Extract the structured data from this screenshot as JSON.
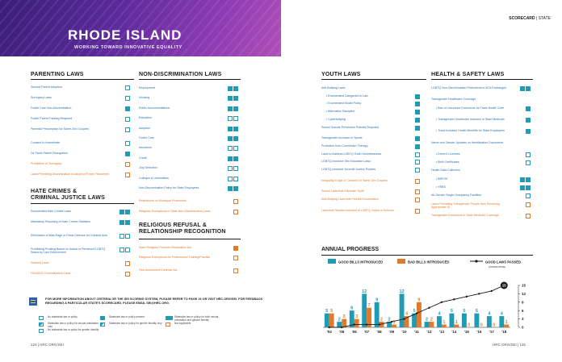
{
  "banner": {
    "title": "RHODE ISLAND",
    "subtitle": "WORKING TOWARD INNOVATIVE EQUALITY"
  },
  "header": {
    "section": "SCORECARD",
    "sep": "|",
    "sub": "STATE"
  },
  "parenting": {
    "title": "PARENTING LAWS",
    "rows": [
      {
        "label": "Second Parent Adoption",
        "status": "empty",
        "color": "blue"
      },
      {
        "label": "Surrogacy Laws",
        "status": "empty",
        "color": "blue"
      },
      {
        "label": "Foster Care Non-Discrimination",
        "status": "full",
        "color": "blue"
      },
      {
        "label": "Foster Parent Training Required",
        "status": "empty",
        "color": "blue"
      },
      {
        "label": "Parental Presumption for Same-Sex Couples",
        "status": "empty",
        "color": "blue"
      },
      {
        "label": "Consent to Inseminate",
        "status": "empty",
        "color": "blue"
      },
      {
        "label": "De Facto Parent Recognition",
        "status": "full",
        "color": "blue"
      },
      {
        "label": "Prohibition of Surrogacy",
        "status": "orange",
        "color": "orange"
      },
      {
        "label": "Laws Permitting Discrimination in Adoption/Foster Placement",
        "status": "orange",
        "color": "orange"
      }
    ]
  },
  "hate": {
    "title_line1": "HATE CRIMES &",
    "title_line2": "CRIMINAL JUSTICE LAWS",
    "rows": [
      {
        "label": "Enumerated Hate Crimes Laws",
        "status": "double-full",
        "color": "blue"
      },
      {
        "label": "Mandatory Reporting of Hate Crimes Statistics",
        "status": "double-full",
        "color": "blue"
      },
      {
        "label": "Elimination of Bias Rage or Panic Defense for Criminal Acts",
        "status": "double-empty",
        "color": "blue"
      },
      {
        "label": "Prohibiting Profiling Based on Actual or Perceived LGBTQ Status by Law Enforcement",
        "status": "double-empty",
        "color": "blue"
      },
      {
        "label": "Sodomy Laws",
        "status": "orange",
        "color": "orange"
      },
      {
        "label": "HIV/AIDS Criminalization Laws",
        "status": "orange",
        "color": "orange"
      }
    ]
  },
  "nondisc": {
    "title": "NON-DISCRIMINATION LAWS",
    "rows": [
      {
        "label": "Employment",
        "status": "double-full",
        "color": "blue"
      },
      {
        "label": "Housing",
        "status": "double-full",
        "color": "blue"
      },
      {
        "label": "Public Accommodations",
        "status": "double-full",
        "color": "blue"
      },
      {
        "label": "Education",
        "status": "double-empty",
        "color": "blue"
      },
      {
        "label": "Adoption",
        "status": "double-full",
        "color": "blue"
      },
      {
        "label": "Foster Care",
        "status": "double-full",
        "color": "blue"
      },
      {
        "label": "Insurance",
        "status": "double-empty",
        "color": "blue"
      },
      {
        "label": "Credit",
        "status": "double-full",
        "color": "blue"
      },
      {
        "label": "Jury Selection",
        "status": "double-empty",
        "color": "blue"
      },
      {
        "label": "Colleges & Universities",
        "status": "double-empty",
        "color": "blue"
      },
      {
        "label": "Non-Discrimination Policy for State Employees",
        "status": "double-full",
        "color": "blue"
      },
      {
        "label": "Restrictions on Municipal Protections",
        "status": "orange",
        "color": "orange"
      },
      {
        "label": "Religious Exemptions in State Non-Discrimination Laws",
        "status": "orange",
        "color": "orange"
      }
    ]
  },
  "religious": {
    "title_line1": "RELIGIOUS REFUSAL &",
    "title_line2": "RELATIONSHIP RECOGNITION",
    "rows": [
      {
        "label": "State Religious Freedom Restoration Act",
        "status": "orange-full",
        "color": "orange"
      },
      {
        "label": "Religious Exemptions for Professional Training/Practice",
        "status": "orange",
        "color": "orange"
      },
      {
        "label": "First Amendment Defense Act",
        "status": "orange",
        "color": "orange"
      }
    ]
  },
  "youth": {
    "title": "YOUTH LAWS",
    "rows": [
      {
        "label": "Anti-Bullying Laws",
        "status": "none",
        "color": "blue",
        "indent": 0
      },
      {
        "label": "• Enumerated Categories in Law",
        "status": "full",
        "color": "blue",
        "indent": 1
      },
      {
        "label": "• Enumerated Model Policy",
        "status": "full",
        "color": "blue",
        "indent": 1
      },
      {
        "label": "• Alternative Discipline",
        "status": "full",
        "color": "blue",
        "indent": 1
      },
      {
        "label": "• Cyberbullying",
        "status": "full",
        "color": "blue",
        "indent": 1
      },
      {
        "label": "School Suicide Prevention Policies Required",
        "status": "full",
        "color": "blue",
        "indent": 0
      },
      {
        "label": "Transgender Inclusion in Sports",
        "status": "full",
        "color": "blue",
        "indent": 0
      },
      {
        "label": "Protection from Conversion Therapy",
        "status": "full",
        "color": "blue",
        "indent": 0
      },
      {
        "label": "Laws to Address LGBTQ Youth Homelessness",
        "status": "empty",
        "color": "blue",
        "indent": 0
      },
      {
        "label": "LGBTQ-Inclusive Sex Education Laws",
        "status": "empty",
        "color": "blue",
        "indent": 0
      },
      {
        "label": "LGBTQ-Inclusive Juvenile Justice Policies",
        "status": "empty",
        "color": "blue",
        "indent": 0
      },
      {
        "label": "Inequality in Age of Consent for Same-Sex Couples",
        "status": "orange",
        "color": "orange",
        "indent": 0
      },
      {
        "label": "School Laws that Eliminate Youth",
        "status": "orange",
        "color": "orange",
        "indent": 0
      },
      {
        "label": "Anti-Bullying Laws that Prohibit Enumeration",
        "status": "orange",
        "color": "orange",
        "indent": 0
      },
      {
        "label": "Laws that Restrict Inclusion of LGBTQ Topics in Schools",
        "status": "orange",
        "color": "orange",
        "indent": 0
      }
    ]
  },
  "health": {
    "title": "HEALTH & SAFETY LAWS",
    "rows": [
      {
        "label": "LGBTQ Non-Discrimination Protections in ACA Exchanges",
        "status": "double-full",
        "color": "blue",
        "indent": 0
      },
      {
        "label": "Transgender Healthcare Coverage",
        "status": "none",
        "color": "blue",
        "indent": 0
      },
      {
        "label": "• Ban on Insurance Exclusions for Trans Health Care",
        "status": "full",
        "color": "blue",
        "indent": 1
      },
      {
        "label": "• Transgender Healthcare Inclusion in State Medicaid",
        "status": "full",
        "color": "blue",
        "indent": 1
      },
      {
        "label": "• Trans Inclusive Health Benefits for State Employees",
        "status": "full",
        "color": "blue",
        "indent": 1
      },
      {
        "label": "Name and Gender Updates on Identification Documents",
        "status": "none",
        "color": "blue",
        "indent": 0
      },
      {
        "label": "• Driver's Licenses",
        "status": "empty",
        "color": "blue",
        "indent": 1
      },
      {
        "label": "• Birth Certificates",
        "status": "empty",
        "color": "blue",
        "indent": 1
      },
      {
        "label": "Health Data Collection",
        "status": "none",
        "color": "blue",
        "indent": 0
      },
      {
        "label": "• BRFSS",
        "status": "double-full",
        "color": "blue",
        "indent": 1
      },
      {
        "label": "• YRBS",
        "status": "double-full",
        "color": "blue",
        "indent": 1
      },
      {
        "label": "All-Gender Single Occupancy Facilities",
        "status": "empty",
        "color": "blue",
        "indent": 0
      },
      {
        "label": "Laws Prohibiting Transgender People from Receiving Appropriate ID",
        "status": "orange",
        "color": "orange",
        "indent": 0
      },
      {
        "label": "Transgender Exclusions in State Medicaid Coverage",
        "status": "orange",
        "color": "orange",
        "indent": 0
      }
    ]
  },
  "footer": {
    "note": "FOR MORE INFORMATION ABOUT CRITERIA OR THE SEI SCORING SYSTEM, PLEASE REFER TO PAGE 26 OR VISIT HRC.ORG/SEI. FOR FEEDBACK REGARDING A PARTICULAR STATE'S SCORECARD, PLEASE EMAIL SEI@HRC.ORG.",
    "legend": [
      {
        "label": "No statewide law or policy",
        "swatch": "empty"
      },
      {
        "label": "Statewide law or policy for sexual orientation only",
        "swatch": "half"
      },
      {
        "label": "No statewide law or policy for gender identity",
        "swatch": "empty"
      },
      {
        "label": "Statewide law or policy present",
        "swatch": "full"
      },
      {
        "label": "Statewide law or policy for gender identity only",
        "swatch": "half"
      },
      {
        "label": "Statewide law or policy for both sexual orientation and gender identity",
        "swatch": "double"
      },
      {
        "label": "Not Applicable",
        "swatch": "orange"
      }
    ]
  },
  "pages": {
    "left": "124 | HRC.ORG/SEI",
    "right": "HRC.ORG/SEI | 125"
  },
  "chart_data": {
    "type": "bar",
    "title": "ANNUAL PROGRESS",
    "categories": [
      "'04",
      "'05",
      "'06",
      "'07",
      "'08",
      "'09",
      "'10",
      "'11",
      "'12",
      "'13",
      "'14",
      "'15",
      "'16",
      "'17",
      "'18"
    ],
    "series": [
      {
        "name": "GOOD BILLS INTRODUCED",
        "color": "#1f9bb6",
        "values": [
          5,
          2,
          6,
          12,
          9,
          2,
          12,
          5,
          2,
          4,
          5,
          5,
          5,
          4,
          4
        ]
      },
      {
        "name": "BAD BILLS INTRODUCED",
        "color": "#e07a2c",
        "values": [
          5,
          3,
          3,
          7,
          2,
          1,
          4,
          9,
          2,
          1,
          1,
          0,
          0,
          0,
          1
        ]
      }
    ],
    "line": {
      "name": "GOOD LAWS PASSED",
      "subtitle": "(CUMULATIVE)",
      "color": "#1a1a1a",
      "end_label": "15",
      "values": [
        0,
        0,
        1,
        1,
        1,
        2,
        3,
        5,
        7,
        9,
        10,
        11,
        12,
        13,
        15
      ]
    },
    "ylim": [
      0,
      15
    ],
    "yticks": [
      "15",
      "12",
      "9",
      "6",
      "3",
      "0"
    ],
    "xlabel": "",
    "ylabel": "",
    "grid": false,
    "legend": "top"
  }
}
